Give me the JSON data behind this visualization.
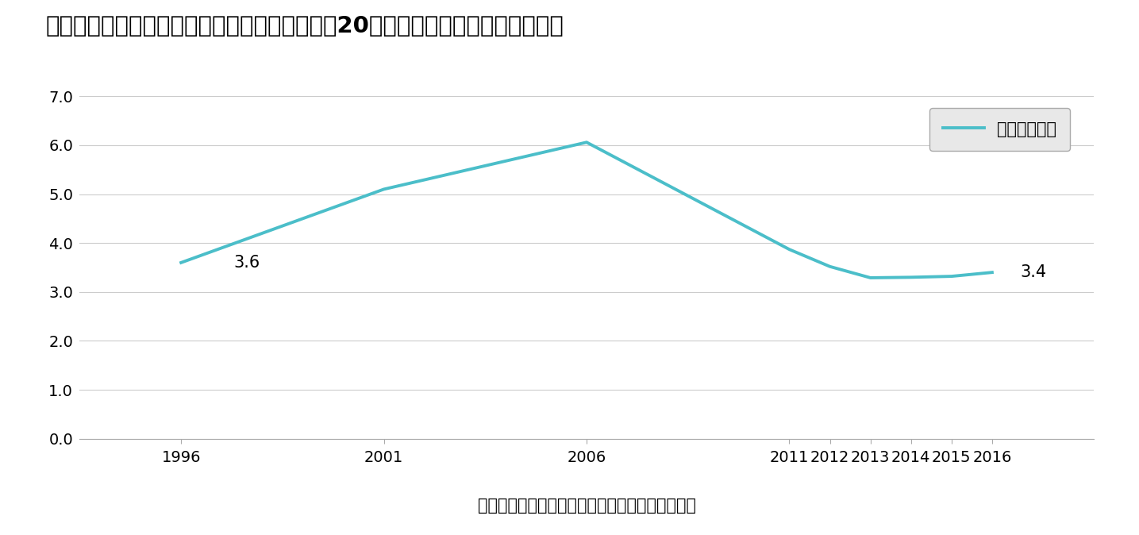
{
  "title": "【図表１】日本国内における国際結婚の割合、20年間の推移（縦：％・横：年）",
  "xlabel": "資料）厚生労働省「人口動態統計」より筆者作成",
  "legend_label": "国際結婚割合",
  "years": [
    1996,
    2001,
    2006,
    2011,
    2012,
    2013,
    2014,
    2015,
    2016
  ],
  "values": [
    3.6,
    5.1,
    6.06,
    3.87,
    3.52,
    3.29,
    3.3,
    3.32,
    3.4
  ],
  "line_color": "#4BBEC9",
  "ylim": [
    0.0,
    7.0
  ],
  "yticks": [
    0.0,
    1.0,
    2.0,
    3.0,
    4.0,
    5.0,
    6.0,
    7.0
  ],
  "annotation_1996": "3.6",
  "annotation_2016": "3.4",
  "background_color": "#ffffff",
  "grid_color": "#cccccc",
  "title_fontsize": 21,
  "tick_fontsize": 14,
  "legend_fontsize": 15,
  "xlabel_fontsize": 15,
  "annotation_fontsize": 15
}
